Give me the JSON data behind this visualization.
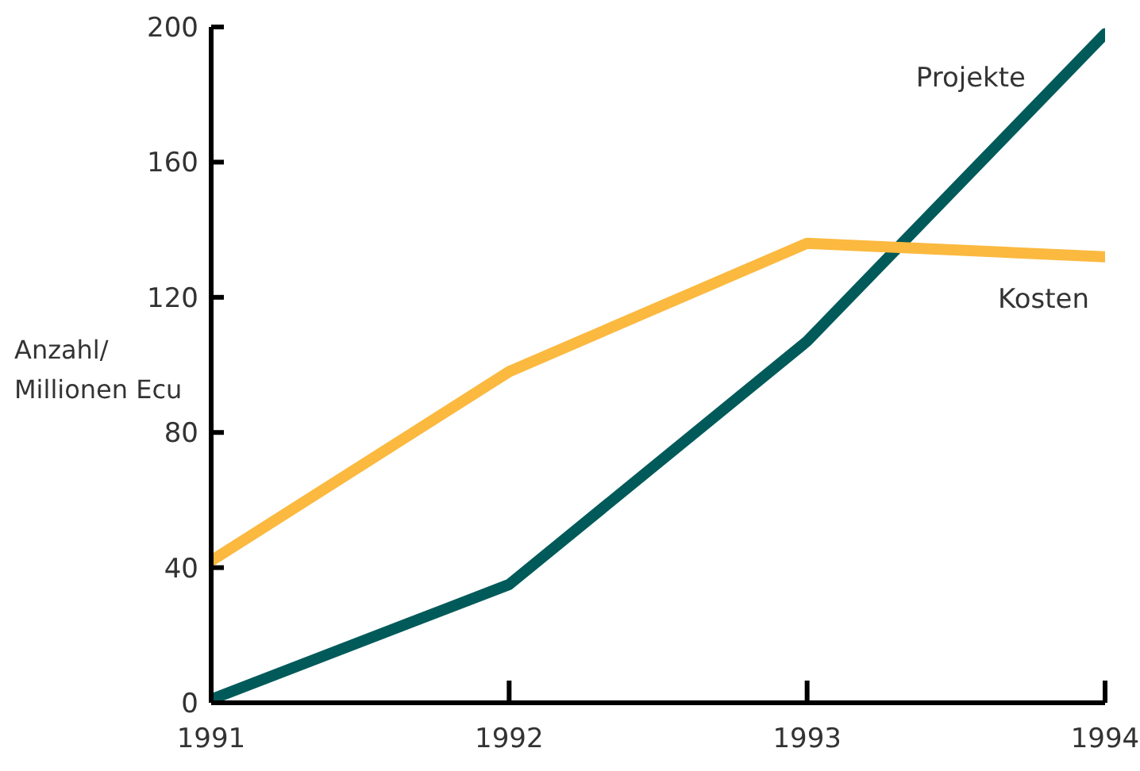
{
  "chart_data": {
    "type": "line",
    "ylabel": "Anzahl/\nMillionen Ecu",
    "x": [
      1991,
      1992,
      1993,
      1994
    ],
    "series": [
      {
        "name": "Projekte",
        "color": "#005a5a",
        "values": [
          1,
          35,
          107,
          198
        ]
      },
      {
        "name": "Kosten",
        "color": "#fbb93f",
        "values": [
          42,
          98,
          136,
          132
        ]
      }
    ],
    "xlim": [
      1991,
      1994
    ],
    "xticks": [
      1991,
      1992,
      1993,
      1994
    ],
    "ylim": [
      0,
      200
    ],
    "yticks": [
      0,
      40,
      80,
      120,
      160,
      200
    ],
    "grid": false,
    "legend": false,
    "marker": "none",
    "line_style": "solid"
  }
}
